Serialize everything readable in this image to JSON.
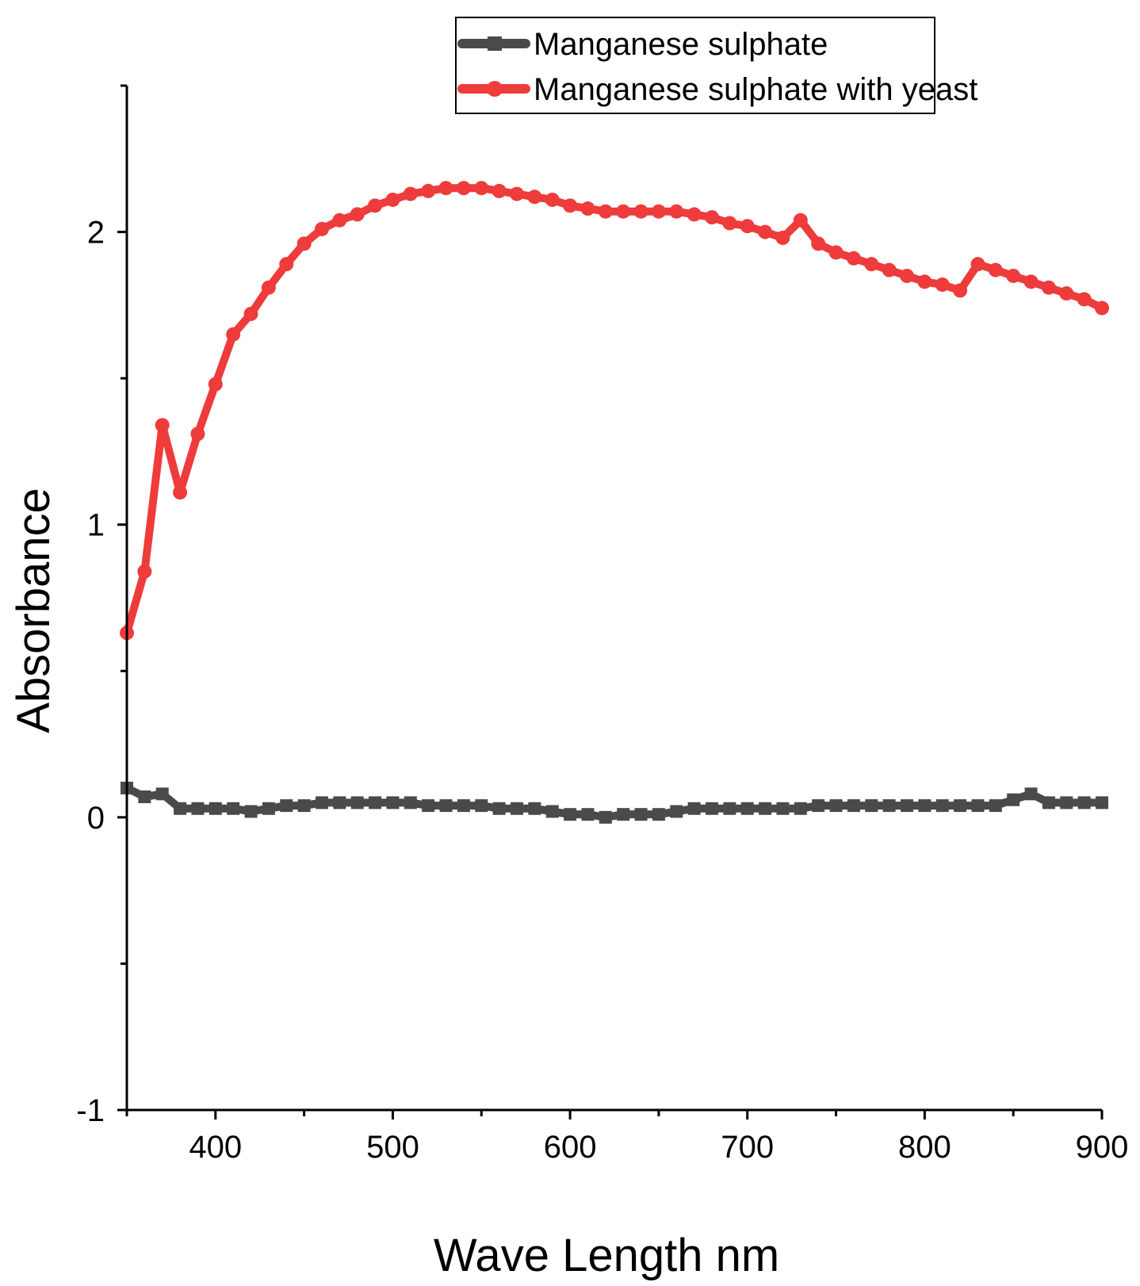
{
  "chart_data": {
    "type": "line",
    "title": "",
    "xlabel": "Wave Length nm",
    "ylabel": "Absorbance",
    "xlim": [
      350,
      900
    ],
    "ylim": [
      -1,
      2.5
    ],
    "xticks": [
      400,
      500,
      600,
      700,
      800,
      900
    ],
    "xtick_labels": [
      "400",
      "500",
      "600",
      "700",
      "800",
      "900"
    ],
    "yticks": [
      -1,
      0,
      1,
      2
    ],
    "ytick_labels": [
      "-1",
      "0",
      "1",
      "2"
    ],
    "grid": false,
    "legend_position": "top-right",
    "x": [
      350,
      360,
      370,
      380,
      390,
      400,
      410,
      420,
      430,
      440,
      450,
      460,
      470,
      480,
      490,
      500,
      510,
      520,
      530,
      540,
      550,
      560,
      570,
      580,
      590,
      600,
      610,
      620,
      630,
      640,
      650,
      660,
      670,
      680,
      690,
      700,
      710,
      720,
      730,
      740,
      750,
      760,
      770,
      780,
      790,
      800,
      810,
      820,
      830,
      840,
      850,
      860,
      870,
      880,
      890,
      900
    ],
    "series": [
      {
        "name": "Manganese sulphate",
        "color": "#4a4a4a",
        "marker": "square",
        "values": [
          0.1,
          0.07,
          0.08,
          0.03,
          0.03,
          0.03,
          0.03,
          0.02,
          0.03,
          0.04,
          0.04,
          0.05,
          0.05,
          0.05,
          0.05,
          0.05,
          0.05,
          0.04,
          0.04,
          0.04,
          0.04,
          0.03,
          0.03,
          0.03,
          0.02,
          0.01,
          0.01,
          0.0,
          0.01,
          0.01,
          0.01,
          0.02,
          0.03,
          0.03,
          0.03,
          0.03,
          0.03,
          0.03,
          0.03,
          0.04,
          0.04,
          0.04,
          0.04,
          0.04,
          0.04,
          0.04,
          0.04,
          0.04,
          0.04,
          0.04,
          0.06,
          0.08,
          0.05,
          0.05,
          0.05,
          0.05
        ]
      },
      {
        "name": "Manganese sulphate with yeast",
        "color": "#ee3b3b",
        "marker": "circle",
        "values": [
          0.63,
          0.84,
          1.34,
          1.11,
          1.31,
          1.48,
          1.65,
          1.72,
          1.81,
          1.89,
          1.96,
          2.01,
          2.04,
          2.06,
          2.09,
          2.11,
          2.13,
          2.14,
          2.15,
          2.15,
          2.15,
          2.14,
          2.13,
          2.12,
          2.11,
          2.09,
          2.08,
          2.07,
          2.07,
          2.07,
          2.07,
          2.07,
          2.06,
          2.05,
          2.03,
          2.02,
          2.0,
          1.98,
          2.04,
          1.96,
          1.93,
          1.91,
          1.89,
          1.87,
          1.85,
          1.83,
          1.82,
          1.8,
          1.89,
          1.87,
          1.85,
          1.83,
          1.81,
          1.79,
          1.77,
          1.74
        ]
      }
    ]
  }
}
